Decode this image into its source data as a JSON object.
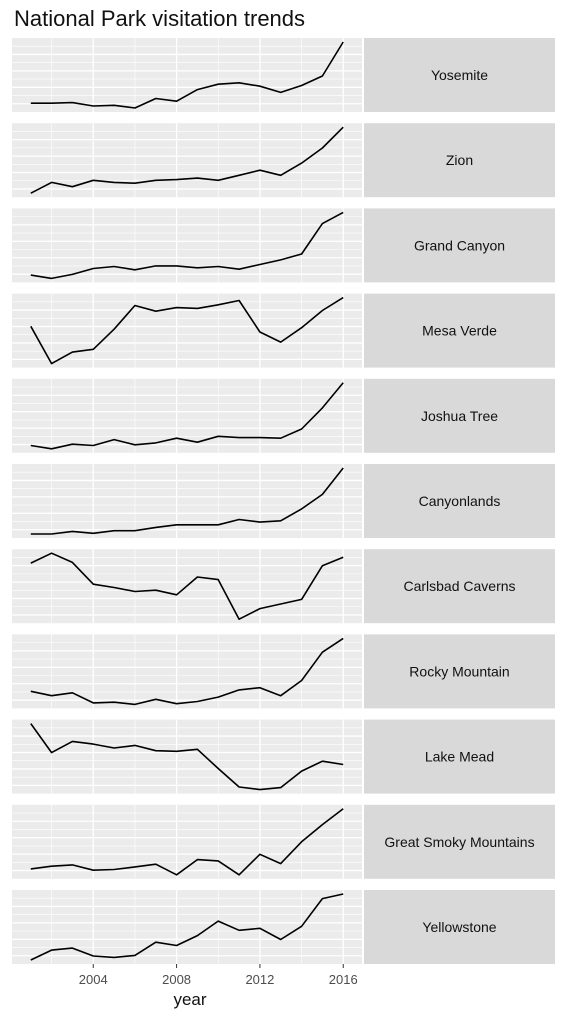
{
  "chart_data": {
    "type": "line",
    "title": "National Park visitation trends",
    "xlabel": "year",
    "ylabel": "",
    "facet_layout": "vertical small multiples, strip labels on right, free y scales",
    "grid": true,
    "x": [
      2001,
      2002,
      2003,
      2004,
      2005,
      2006,
      2007,
      2008,
      2009,
      2010,
      2011,
      2012,
      2013,
      2014,
      2015,
      2016
    ],
    "xticks": [
      "2004",
      "2008",
      "2012",
      "2016"
    ],
    "xlim": [
      2000.1,
      2016.9
    ],
    "series": [
      {
        "name": "Yosemite",
        "values": [
          0.1,
          0.1,
          0.11,
          0.06,
          0.07,
          0.03,
          0.17,
          0.13,
          0.3,
          0.38,
          0.4,
          0.35,
          0.26,
          0.36,
          0.5,
          1.0
        ]
      },
      {
        "name": "Zion",
        "values": [
          0.0,
          0.15,
          0.09,
          0.18,
          0.15,
          0.14,
          0.18,
          0.19,
          0.21,
          0.18,
          0.25,
          0.32,
          0.25,
          0.42,
          0.63,
          0.92
        ]
      },
      {
        "name": "Grand Canyon",
        "values": [
          0.05,
          0.0,
          0.06,
          0.15,
          0.18,
          0.13,
          0.19,
          0.19,
          0.16,
          0.18,
          0.14,
          0.21,
          0.28,
          0.37,
          0.83,
          1.0
        ]
      },
      {
        "name": "Mesa Verde",
        "values": [
          0.52,
          0.0,
          0.16,
          0.2,
          0.48,
          0.81,
          0.73,
          0.78,
          0.77,
          0.82,
          0.88,
          0.44,
          0.3,
          0.5,
          0.74,
          0.92
        ]
      },
      {
        "name": "Joshua Tree",
        "values": [
          0.05,
          0.0,
          0.07,
          0.05,
          0.14,
          0.06,
          0.09,
          0.16,
          0.1,
          0.19,
          0.17,
          0.17,
          0.16,
          0.3,
          0.62,
          1.0
        ]
      },
      {
        "name": "Canyonlands",
        "values": [
          0.0,
          0.0,
          0.04,
          0.01,
          0.05,
          0.05,
          0.1,
          0.14,
          0.14,
          0.14,
          0.22,
          0.18,
          0.2,
          0.38,
          0.6,
          1.0
        ]
      },
      {
        "name": "Carlsbad Caverns",
        "values": [
          0.85,
          1.0,
          0.86,
          0.53,
          0.48,
          0.42,
          0.44,
          0.37,
          0.64,
          0.6,
          0.0,
          0.16,
          0.23,
          0.3,
          0.81,
          0.94
        ]
      },
      {
        "name": "Rocky Mountain",
        "values": [
          0.18,
          0.12,
          0.16,
          0.02,
          0.03,
          0.0,
          0.07,
          0.01,
          0.04,
          0.1,
          0.2,
          0.23,
          0.12,
          0.33,
          0.72,
          0.91
        ]
      },
      {
        "name": "Lake Mead",
        "values": [
          1.0,
          0.56,
          0.73,
          0.69,
          0.63,
          0.67,
          0.59,
          0.58,
          0.61,
          0.32,
          0.04,
          0.0,
          0.03,
          0.28,
          0.43,
          0.38
        ]
      },
      {
        "name": "Great Smoky Mountains",
        "values": [
          0.09,
          0.13,
          0.15,
          0.07,
          0.08,
          0.12,
          0.16,
          0.0,
          0.23,
          0.21,
          0.0,
          0.31,
          0.17,
          0.5,
          0.76,
          1.0
        ]
      },
      {
        "name": "Yellowstone",
        "values": [
          0.0,
          0.15,
          0.18,
          0.06,
          0.04,
          0.07,
          0.27,
          0.22,
          0.37,
          0.59,
          0.45,
          0.48,
          0.31,
          0.51,
          0.93,
          1.0
        ]
      }
    ],
    "colors": {
      "panel_bg": "#ebebeb",
      "strip_bg": "#d9d9d9",
      "grid": "#ffffff",
      "line": "#000000",
      "text": "#111111",
      "tick_text": "#4d4d4d"
    }
  }
}
